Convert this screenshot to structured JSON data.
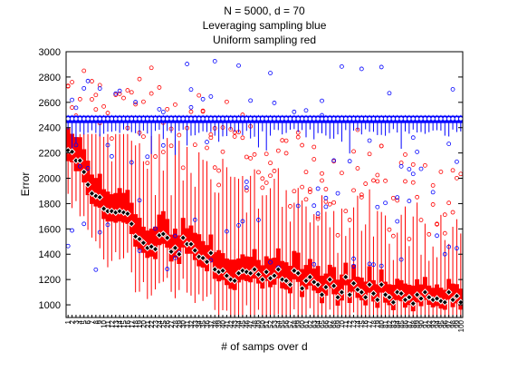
{
  "chart_data": {
    "type": "box",
    "title_lines": [
      "N = 5000, d = 70",
      "Leveraging sampling blue",
      "Uniform sampling red"
    ],
    "xlabel": "# of samps over d",
    "ylabel": "Error",
    "ylim": [
      900,
      3000
    ],
    "yticks": [
      1000,
      1200,
      1400,
      1600,
      1800,
      2000,
      2200,
      2400,
      2600,
      2800,
      3000
    ],
    "x_tick_range": [
      1,
      100
    ],
    "grid": false,
    "colors": {
      "leverage": "#0000ff",
      "uniform": "#ff0000",
      "median_marker": "#000000"
    },
    "series": [
      {
        "name": "Leveraging sampling",
        "color": "blue",
        "median": 2470,
        "q1": 2440,
        "q3": 2490,
        "whisker_low_typical": 2330,
        "whisker_high": 2500,
        "outlier_samples": [
          2780,
          2900,
          2860,
          2700,
          2680,
          2640,
          2600,
          2570,
          2540,
          2510,
          2300,
          2250,
          2200,
          2150,
          2100,
          2050,
          2000,
          1950,
          1900,
          1850,
          1800,
          1750,
          1700,
          1650,
          1600,
          1550,
          1500,
          1450,
          1400,
          1350,
          1300,
          1250
        ]
      },
      {
        "name": "Uniform sampling",
        "color": "red",
        "medians": [
          2220,
          2210,
          2140,
          2140,
          2050,
          1950,
          1880,
          1860,
          1850,
          1760,
          1740,
          1740,
          1730,
          1740,
          1730,
          1720,
          1640,
          1540,
          1520,
          1490,
          1450,
          1460,
          1440,
          1550,
          1560,
          1530,
          1420,
          1450,
          1400,
          1530,
          1480,
          1480,
          1430,
          1380,
          1370,
          1340,
          1410,
          1280,
          1260,
          1270,
          1230,
          1200,
          1190,
          1250,
          1270,
          1260,
          1250,
          1280,
          1240,
          1200,
          1260,
          1210,
          1230,
          1280,
          1200,
          1190,
          1160,
          1270,
          1250,
          1130,
          1190,
          1220,
          1180,
          1160,
          1080,
          1140,
          1200,
          1150,
          1060,
          1100,
          1220,
          1080,
          1170,
          1120,
          1100,
          1060,
          1160,
          1090,
          1040,
          1160,
          1080,
          1060,
          1020,
          1100,
          1090,
          1040,
          1060,
          1010,
          1080,
          1050,
          1100,
          1060,
          1040,
          1050,
          1030,
          1020,
          1100,
          1040,
          1070,
          1020
        ]
      }
    ]
  }
}
